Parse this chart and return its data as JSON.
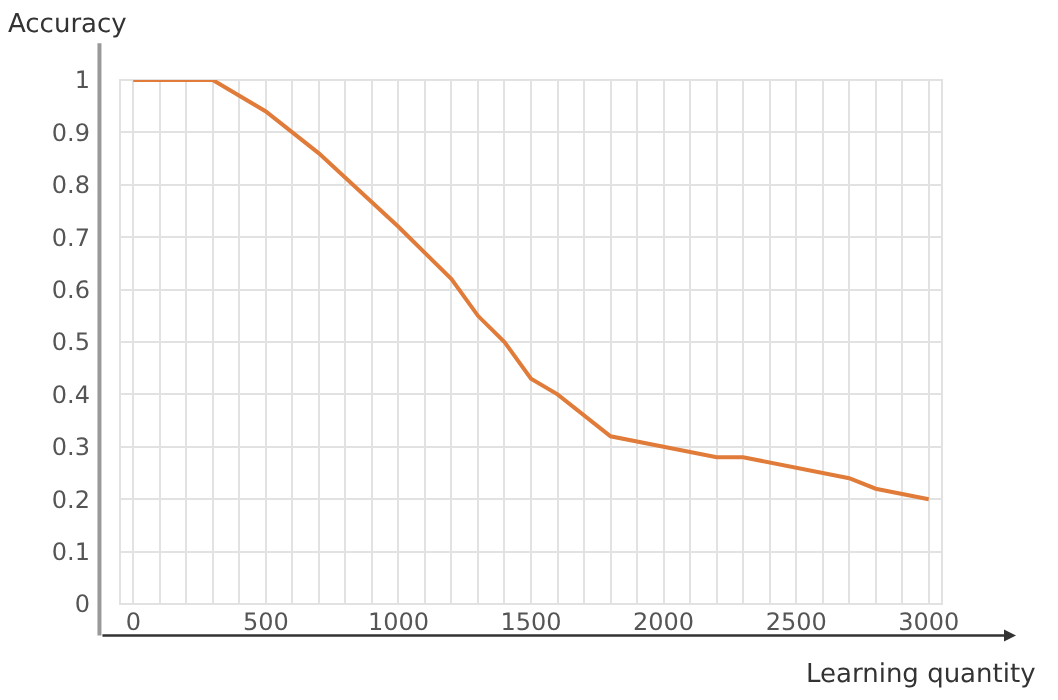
{
  "chart_data": {
    "type": "line",
    "xlabel": "Learning quantity",
    "ylabel": "Accuracy",
    "x": [
      0,
      300,
      500,
      700,
      1000,
      1200,
      1300,
      1400,
      1500,
      1600,
      1800,
      2000,
      2200,
      2300,
      2700,
      2800,
      3000
    ],
    "series": [
      {
        "color": "#e07b39",
        "values": [
          1,
          1,
          0.94,
          0.86,
          0.72,
          0.62,
          0.55,
          0.5,
          0.43,
          0.4,
          0.32,
          0.3,
          0.28,
          0.28,
          0.24,
          0.22,
          0.2
        ]
      }
    ],
    "xlim": [
      -50,
      3050
    ],
    "ylim": [
      0,
      1
    ],
    "xticks": [
      0,
      {
        "value": 100,
        "label": null
      },
      {
        "value": 200,
        "label": null
      },
      {
        "value": 300,
        "label": null
      },
      {
        "value": 400,
        "label": null
      },
      500,
      {
        "value": 600,
        "label": null
      },
      {
        "value": 700,
        "label": null
      },
      {
        "value": 800,
        "label": null
      },
      {
        "value": 900,
        "label": null
      },
      1000,
      {
        "value": 1100,
        "label": null
      },
      {
        "value": 1200,
        "label": null
      },
      {
        "value": 1300,
        "label": null
      },
      {
        "value": 1400,
        "label": null
      },
      1500,
      {
        "value": 1600,
        "label": null
      },
      {
        "value": 1700,
        "label": null
      },
      {
        "value": 1800,
        "label": null
      },
      {
        "value": 1900,
        "label": null
      },
      2000,
      {
        "value": 2100,
        "label": null
      },
      {
        "value": 2200,
        "label": null
      },
      {
        "value": 2300,
        "label": null
      },
      {
        "value": 2400,
        "label": null
      },
      2500,
      {
        "value": 2600,
        "label": null
      },
      {
        "value": 2700,
        "label": null
      },
      {
        "value": 2800,
        "label": null
      },
      {
        "value": 2900,
        "label": null
      },
      3000
    ],
    "yticks": [
      0,
      0.1,
      0.2,
      0.3,
      0.4,
      0.5,
      0.6,
      0.7,
      0.8,
      0.9,
      1
    ],
    "grid": true,
    "marker": "none",
    "line_style": "solid",
    "legend": false
  }
}
